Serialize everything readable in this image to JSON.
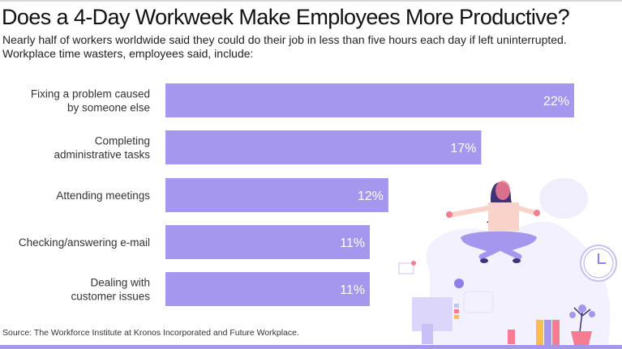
{
  "header": {
    "title": "Does a 4-Day Workweek Make Employees More Productive?",
    "subtitle_line1": "Nearly half of workers worldwide said they could do their job in less than five hours each day if left uninterrupted.",
    "subtitle_line2": "Workplace time wasters, employees said, include:"
  },
  "footer": {
    "source": "Source: The Workforce Institute at Kronos Incorporated and Future Workplace."
  },
  "colors": {
    "bar": "#a597ee",
    "accent_pink": "#f47d92",
    "hair": "#3f3279"
  },
  "chart_data": {
    "type": "bar",
    "orientation": "horizontal",
    "title": "Does a 4-Day Workweek Make Employees More Productive?",
    "xlabel": "",
    "ylabel": "",
    "unit": "%",
    "categories": [
      [
        "Fixing a problem caused",
        "by someone else"
      ],
      [
        "Completing",
        "administrative tasks"
      ],
      [
        "Attending meetings"
      ],
      [
        "Checking/answering e-mail"
      ],
      [
        "Dealing with",
        "customer issues"
      ]
    ],
    "values": [
      22,
      17,
      12,
      11,
      11
    ],
    "labels": [
      "22%",
      "17%",
      "12%",
      "11%",
      "11%"
    ],
    "xlim": [
      0,
      22
    ],
    "grid": false
  }
}
